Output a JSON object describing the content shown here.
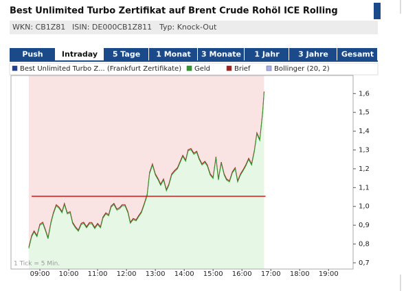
{
  "header": {
    "title": "Best Unlimited Turbo Zertifikat auf Brent Crude Rohöl ICE Rolling",
    "info": [
      "WKN: CB1Z81",
      "ISIN: DE000CB1Z811",
      "Typ: Knock-Out"
    ]
  },
  "tabs": [
    "Push",
    "Intraday",
    "5 Tage",
    "1 Monat",
    "3 Monate",
    "1 Jahr",
    "3 Jahre",
    "Gesamt"
  ],
  "active_tab": 1,
  "chart_data": {
    "type": "line",
    "annotation": "1 Tick = 5 Min.",
    "x": [
      517,
      523,
      528,
      534,
      540,
      546,
      551,
      557,
      563,
      568,
      574,
      580,
      586,
      591,
      597,
      603,
      608,
      614,
      620,
      626,
      631,
      637,
      643,
      648,
      654,
      660,
      666,
      671,
      677,
      683,
      688,
      694,
      700,
      706,
      711,
      717,
      723,
      728,
      734,
      740,
      746,
      751,
      757,
      763,
      768,
      774,
      780,
      786,
      791,
      797,
      803,
      808,
      814,
      820,
      826,
      831,
      837,
      843,
      848,
      854,
      860,
      866,
      871,
      877,
      883,
      888,
      894,
      900,
      906,
      911,
      917,
      923,
      928,
      934,
      940,
      946,
      951,
      957,
      963,
      968,
      974,
      980,
      986,
      991,
      997,
      1003,
      1006
    ],
    "series": [
      {
        "name": "Best Unlimited Turbo Z... (Frankfurt Zertifikate)",
        "color": "#1f3f8f"
      },
      {
        "name": "Geld",
        "color": "#2e9a2e",
        "values": [
          0.777,
          0.839,
          0.864,
          0.839,
          0.9,
          0.91,
          0.875,
          0.828,
          0.91,
          0.96,
          1.003,
          0.99,
          0.966,
          1.01,
          0.96,
          0.966,
          0.91,
          0.886,
          0.868,
          0.904,
          0.91,
          0.886,
          0.908,
          0.908,
          0.882,
          0.904,
          0.886,
          0.937,
          0.96,
          0.95,
          0.996,
          1.01,
          0.98,
          0.988,
          1.003,
          1.003,
          0.966,
          0.91,
          0.93,
          0.923,
          0.948,
          0.966,
          1.01,
          1.058,
          1.174,
          1.22,
          1.167,
          1.14,
          1.112,
          1.14,
          1.083,
          1.112,
          1.167,
          1.185,
          1.2,
          1.23,
          1.266,
          1.24,
          1.295,
          1.302,
          1.277,
          1.287,
          1.25,
          1.22,
          1.234,
          1.215,
          1.167,
          1.149,
          1.258,
          1.14,
          1.23,
          1.167,
          1.14,
          1.13,
          1.178,
          1.2,
          1.13,
          1.167,
          1.192,
          1.215,
          1.25,
          1.22,
          1.295,
          1.386,
          1.35,
          1.496,
          1.605
        ]
      },
      {
        "name": "Brief",
        "color": "#a02020",
        "values": [
          0.783,
          0.845,
          0.87,
          0.845,
          0.906,
          0.916,
          0.881,
          0.834,
          0.916,
          0.966,
          1.009,
          0.996,
          0.972,
          1.016,
          0.966,
          0.972,
          0.916,
          0.892,
          0.874,
          0.91,
          0.916,
          0.892,
          0.914,
          0.914,
          0.888,
          0.91,
          0.892,
          0.943,
          0.966,
          0.956,
          1.002,
          1.016,
          0.986,
          0.994,
          1.009,
          1.009,
          0.972,
          0.916,
          0.936,
          0.929,
          0.954,
          0.972,
          1.016,
          1.064,
          1.18,
          1.226,
          1.173,
          1.146,
          1.118,
          1.146,
          1.089,
          1.118,
          1.173,
          1.191,
          1.206,
          1.236,
          1.272,
          1.246,
          1.301,
          1.308,
          1.283,
          1.293,
          1.256,
          1.226,
          1.24,
          1.221,
          1.173,
          1.155,
          1.264,
          1.146,
          1.236,
          1.173,
          1.146,
          1.136,
          1.184,
          1.206,
          1.136,
          1.173,
          1.198,
          1.221,
          1.256,
          1.226,
          1.301,
          1.392,
          1.356,
          1.502,
          1.611
        ]
      },
      {
        "name": "Bollinger (20, 2)",
        "color": "#a9b0e6"
      }
    ],
    "reference_line": {
      "value": 1.054,
      "x": [
        523,
        1009
      ],
      "color": "#e01010"
    },
    "area_color": "#e6f7e6",
    "background_color": "#f9e3e3",
    "xlim": [
      480,
      1191
    ],
    "xticks": [
      {
        "value": 540,
        "label": "09:00"
      },
      {
        "value": 600,
        "label": "10:00"
      },
      {
        "value": 660,
        "label": "11:00"
      },
      {
        "value": 720,
        "label": "12:00"
      },
      {
        "value": 780,
        "label": "13:00"
      },
      {
        "value": 840,
        "label": "14:00"
      },
      {
        "value": 900,
        "label": "15:00"
      },
      {
        "value": 960,
        "label": "16:00"
      },
      {
        "value": 1020,
        "label": "17:00"
      },
      {
        "value": 1080,
        "label": "18:00"
      },
      {
        "value": 1140,
        "label": "19:00"
      }
    ],
    "ylim": [
      0.667,
      1.696
    ],
    "yticks": [
      {
        "value": 0.7,
        "label": "0,7"
      },
      {
        "value": 0.8,
        "label": "0,8"
      },
      {
        "value": 0.9,
        "label": "0,9"
      },
      {
        "value": 1.0,
        "label": "1,0"
      },
      {
        "value": 1.1,
        "label": "1,1"
      },
      {
        "value": 1.2,
        "label": "1,2"
      },
      {
        "value": 1.3,
        "label": "1,3"
      },
      {
        "value": 1.4,
        "label": "1,4"
      },
      {
        "value": 1.5,
        "label": "1,5"
      },
      {
        "value": 1.6,
        "label": "1,6"
      }
    ]
  }
}
